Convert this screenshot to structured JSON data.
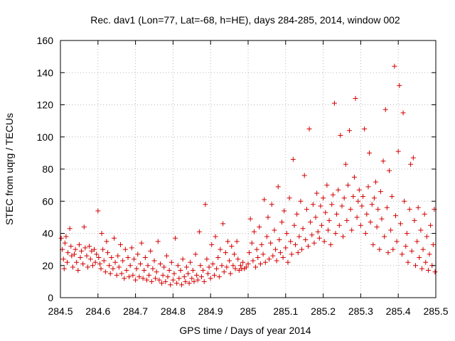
{
  "chart_data": {
    "type": "scatter",
    "title": "Rec. dav1 (Lon=77, Lat=-68, h=HE), days 284-285, 2014, window 002",
    "xlabel": "GPS time / Days of year 2014",
    "ylabel": "STEC from uqrg / TECUs",
    "xlim": [
      284.5,
      285.5
    ],
    "ylim": [
      0,
      160
    ],
    "xticks": [
      284.5,
      284.6,
      284.7,
      284.8,
      284.9,
      285,
      285.1,
      285.2,
      285.3,
      285.4,
      285.5
    ],
    "xtick_labels": [
      "284.5",
      "284.6",
      "284.7",
      "284.8",
      "284.9",
      "285",
      "285.1",
      "285.2",
      "285.3",
      "285.4",
      "285.5"
    ],
    "yticks": [
      0,
      20,
      40,
      60,
      80,
      100,
      120,
      140,
      160
    ],
    "ytick_labels": [
      "0",
      "20",
      "40",
      "60",
      "80",
      "100",
      "120",
      "140",
      "160"
    ],
    "grid": true,
    "marker": "+",
    "color": "#d40000",
    "series": [
      {
        "points": [
          [
            284.502,
            37
          ],
          [
            284.505,
            30
          ],
          [
            284.508,
            24
          ],
          [
            284.51,
            18
          ],
          [
            284.512,
            34
          ],
          [
            284.515,
            38
          ],
          [
            284.518,
            22
          ],
          [
            284.52,
            28
          ],
          [
            284.525,
            43
          ],
          [
            284.528,
            32
          ],
          [
            284.53,
            26
          ],
          [
            284.533,
            19
          ],
          [
            284.537,
            27
          ],
          [
            284.54,
            30
          ],
          [
            284.543,
            22
          ],
          [
            284.547,
            17
          ],
          [
            284.55,
            33
          ],
          [
            284.553,
            25
          ],
          [
            284.556,
            29
          ],
          [
            284.56,
            21
          ],
          [
            284.563,
            44
          ],
          [
            284.566,
            31
          ],
          [
            284.57,
            26
          ],
          [
            284.573,
            19
          ],
          [
            284.577,
            32
          ],
          [
            284.58,
            24
          ],
          [
            284.583,
            29
          ],
          [
            284.586,
            20
          ],
          [
            284.59,
            30
          ],
          [
            284.593,
            22
          ],
          [
            284.596,
            27
          ],
          [
            284.6,
            54
          ],
          [
            284.602,
            25
          ],
          [
            284.605,
            21
          ],
          [
            284.608,
            18
          ],
          [
            284.61,
            40
          ],
          [
            284.613,
            30
          ],
          [
            284.616,
            23
          ],
          [
            284.62,
            16
          ],
          [
            284.623,
            35
          ],
          [
            284.626,
            28
          ],
          [
            284.63,
            20
          ],
          [
            284.633,
            15
          ],
          [
            284.636,
            25
          ],
          [
            284.64,
            18
          ],
          [
            284.643,
            37
          ],
          [
            284.646,
            22
          ],
          [
            284.65,
            14
          ],
          [
            284.653,
            26
          ],
          [
            284.656,
            19
          ],
          [
            284.66,
            33
          ],
          [
            284.663,
            15
          ],
          [
            284.666,
            23
          ],
          [
            284.67,
            12
          ],
          [
            284.673,
            30
          ],
          [
            284.676,
            17
          ],
          [
            284.68,
            25
          ],
          [
            284.683,
            13
          ],
          [
            284.686,
            20
          ],
          [
            284.69,
            31
          ],
          [
            284.693,
            14
          ],
          [
            284.696,
            24
          ],
          [
            284.7,
            11
          ],
          [
            284.703,
            18
          ],
          [
            284.706,
            27
          ],
          [
            284.71,
            13
          ],
          [
            284.713,
            21
          ],
          [
            284.716,
            34
          ],
          [
            284.72,
            12
          ],
          [
            284.723,
            17
          ],
          [
            284.726,
            25
          ],
          [
            284.73,
            11
          ],
          [
            284.733,
            20
          ],
          [
            284.736,
            14
          ],
          [
            284.74,
            29
          ],
          [
            284.743,
            10
          ],
          [
            284.746,
            18
          ],
          [
            284.75,
            23
          ],
          [
            284.753,
            12
          ],
          [
            284.756,
            16
          ],
          [
            284.76,
            35
          ],
          [
            284.763,
            11
          ],
          [
            284.766,
            21
          ],
          [
            284.77,
            9
          ],
          [
            284.773,
            14
          ],
          [
            284.776,
            19
          ],
          [
            284.78,
            10
          ],
          [
            284.783,
            26
          ],
          [
            284.786,
            13
          ],
          [
            284.79,
            17
          ],
          [
            284.793,
            8
          ],
          [
            284.796,
            22
          ],
          [
            284.8,
            11
          ],
          [
            284.803,
            15
          ],
          [
            284.806,
            37
          ],
          [
            284.81,
            9
          ],
          [
            284.813,
            20
          ],
          [
            284.816,
            12
          ],
          [
            284.82,
            17
          ],
          [
            284.823,
            8
          ],
          [
            284.826,
            24
          ],
          [
            284.83,
            13
          ],
          [
            284.833,
            10
          ],
          [
            284.836,
            19
          ],
          [
            284.84,
            15
          ],
          [
            284.843,
            9
          ],
          [
            284.846,
            22
          ],
          [
            284.85,
            12
          ],
          [
            284.853,
            17
          ],
          [
            284.856,
            10
          ],
          [
            284.86,
            27
          ],
          [
            284.863,
            14
          ],
          [
            284.866,
            11
          ],
          [
            284.87,
            41
          ],
          [
            284.873,
            20
          ],
          [
            284.876,
            13
          ],
          [
            284.88,
            17
          ],
          [
            284.883,
            10
          ],
          [
            284.886,
            58
          ],
          [
            284.89,
            24
          ],
          [
            284.893,
            15
          ],
          [
            284.896,
            19
          ],
          [
            284.9,
            12
          ],
          [
            284.903,
            33
          ],
          [
            284.906,
            21
          ],
          [
            284.91,
            14
          ],
          [
            284.913,
            38
          ],
          [
            284.916,
            18
          ],
          [
            284.92,
            25
          ],
          [
            284.923,
            13
          ],
          [
            284.926,
            30
          ],
          [
            284.93,
            20
          ],
          [
            284.933,
            46
          ],
          [
            284.936,
            16
          ],
          [
            284.94,
            28
          ],
          [
            284.943,
            19
          ],
          [
            284.946,
            35
          ],
          [
            284.95,
            23
          ],
          [
            284.953,
            15
          ],
          [
            284.956,
            32
          ],
          [
            284.96,
            20
          ],
          [
            284.963,
            27
          ],
          [
            284.966,
            18
          ],
          [
            284.97,
            35
          ],
          [
            284.973,
            24
          ],
          [
            284.976,
            17
          ],
          [
            284.98,
            20
          ],
          [
            284.983,
            18
          ],
          [
            284.986,
            22
          ],
          [
            284.99,
            18
          ],
          [
            284.995,
            19
          ],
          [
            285.0,
            21
          ],
          [
            285.003,
            28
          ],
          [
            285.006,
            49
          ],
          [
            285.01,
            34
          ],
          [
            285.013,
            23
          ],
          [
            285.016,
            41
          ],
          [
            285.02,
            19
          ],
          [
            285.023,
            30
          ],
          [
            285.026,
            25
          ],
          [
            285.03,
            44
          ],
          [
            285.033,
            21
          ],
          [
            285.036,
            33
          ],
          [
            285.04,
            27
          ],
          [
            285.043,
            61
          ],
          [
            285.046,
            22
          ],
          [
            285.05,
            38
          ],
          [
            285.053,
            50
          ],
          [
            285.056,
            24
          ],
          [
            285.06,
            34
          ],
          [
            285.063,
            58
          ],
          [
            285.066,
            26
          ],
          [
            285.07,
            42
          ],
          [
            285.073,
            30
          ],
          [
            285.076,
            23
          ],
          [
            285.08,
            69
          ],
          [
            285.083,
            36
          ],
          [
            285.086,
            28
          ],
          [
            285.09,
            47
          ],
          [
            285.093,
            25
          ],
          [
            285.096,
            54
          ],
          [
            285.1,
            31
          ],
          [
            285.103,
            40
          ],
          [
            285.106,
            22
          ],
          [
            285.11,
            62
          ],
          [
            285.113,
            35
          ],
          [
            285.116,
            27
          ],
          [
            285.12,
            86
          ],
          [
            285.123,
            45
          ],
          [
            285.126,
            33
          ],
          [
            285.13,
            52
          ],
          [
            285.133,
            28
          ],
          [
            285.136,
            38
          ],
          [
            285.14,
            60
          ],
          [
            285.143,
            30
          ],
          [
            285.146,
            43
          ],
          [
            285.15,
            76
          ],
          [
            285.153,
            36
          ],
          [
            285.156,
            55
          ],
          [
            285.16,
            32
          ],
          [
            285.163,
            105
          ],
          [
            285.166,
            47
          ],
          [
            285.17,
            39
          ],
          [
            285.173,
            58
          ],
          [
            285.176,
            34
          ],
          [
            285.18,
            50
          ],
          [
            285.183,
            65
          ],
          [
            285.186,
            41
          ],
          [
            285.19,
            37
          ],
          [
            285.193,
            57
          ],
          [
            285.196,
            45
          ],
          [
            285.2,
            62
          ],
          [
            285.203,
            35
          ],
          [
            285.206,
            53
          ],
          [
            285.21,
            70
          ],
          [
            285.213,
            42
          ],
          [
            285.216,
            48
          ],
          [
            285.22,
            33
          ],
          [
            285.223,
            58
          ],
          [
            285.226,
            64
          ],
          [
            285.23,
            121
          ],
          [
            285.233,
            40
          ],
          [
            285.236,
            52
          ],
          [
            285.24,
            67
          ],
          [
            285.243,
            45
          ],
          [
            285.246,
            101
          ],
          [
            285.25,
            57
          ],
          [
            285.253,
            38
          ],
          [
            285.256,
            62
          ],
          [
            285.26,
            83
          ],
          [
            285.263,
            48
          ],
          [
            285.266,
            70
          ],
          [
            285.27,
            104
          ],
          [
            285.273,
            55
          ],
          [
            285.276,
            42
          ],
          [
            285.28,
            63
          ],
          [
            285.283,
            75
          ],
          [
            285.286,
            124
          ],
          [
            285.29,
            50
          ],
          [
            285.293,
            60
          ],
          [
            285.296,
            67
          ],
          [
            285.3,
            45
          ],
          [
            285.303,
            57
          ],
          [
            285.306,
            63
          ],
          [
            285.31,
            105
          ],
          [
            285.313,
            40
          ],
          [
            285.316,
            52
          ],
          [
            285.32,
            69
          ],
          [
            285.323,
            90
          ],
          [
            285.326,
            47
          ],
          [
            285.33,
            58
          ],
          [
            285.333,
            33
          ],
          [
            285.336,
            62
          ],
          [
            285.34,
            72
          ],
          [
            285.343,
            44
          ],
          [
            285.346,
            55
          ],
          [
            285.35,
            30
          ],
          [
            285.353,
            66
          ],
          [
            285.356,
            49
          ],
          [
            285.36,
            85
          ],
          [
            285.363,
            38
          ],
          [
            285.366,
            117
          ],
          [
            285.37,
            56
          ],
          [
            285.373,
            28
          ],
          [
            285.376,
            79
          ],
          [
            285.38,
            42
          ],
          [
            285.383,
            63
          ],
          [
            285.386,
            30
          ],
          [
            285.39,
            144
          ],
          [
            285.393,
            51
          ],
          [
            285.396,
            35
          ],
          [
            285.4,
            91
          ],
          [
            285.403,
            132
          ],
          [
            285.406,
            46
          ],
          [
            285.41,
            27
          ],
          [
            285.413,
            115
          ],
          [
            285.416,
            60
          ],
          [
            285.42,
            32
          ],
          [
            285.423,
            40
          ],
          [
            285.426,
            22
          ],
          [
            285.43,
            55
          ],
          [
            285.433,
            83
          ],
          [
            285.436,
            29
          ],
          [
            285.44,
            87
          ],
          [
            285.443,
            48
          ],
          [
            285.446,
            20
          ],
          [
            285.45,
            35
          ],
          [
            285.453,
            56
          ],
          [
            285.456,
            25
          ],
          [
            285.46,
            42
          ],
          [
            285.463,
            18
          ],
          [
            285.466,
            30
          ],
          [
            285.47,
            52
          ],
          [
            285.473,
            22
          ],
          [
            285.476,
            38
          ],
          [
            285.48,
            17
          ],
          [
            285.483,
            27
          ],
          [
            285.486,
            45
          ],
          [
            285.49,
            20
          ],
          [
            285.493,
            33
          ],
          [
            285.496,
            55
          ],
          [
            285.498,
            16
          ]
        ]
      }
    ]
  }
}
